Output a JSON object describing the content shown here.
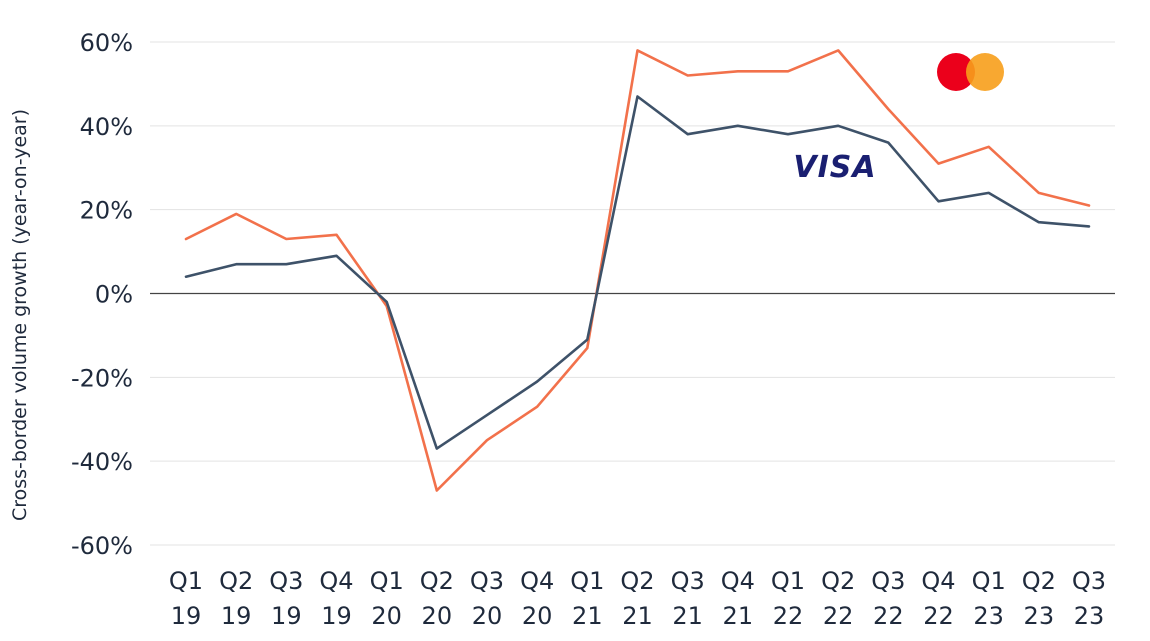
{
  "chart_data": {
    "type": "line",
    "ylabel": "Cross-border volume growth (year-on-year)",
    "ylim": [
      -60,
      60
    ],
    "yticks": [
      60,
      40,
      20,
      0,
      -20,
      -40,
      -60
    ],
    "ytick_labels": [
      "60%",
      "40%",
      "20%",
      "0%",
      "-20%",
      "-40%",
      "-60%"
    ],
    "categories": [
      [
        "Q1",
        "19"
      ],
      [
        "Q2",
        "19"
      ],
      [
        "Q3",
        "19"
      ],
      [
        "Q4",
        "19"
      ],
      [
        "Q1",
        "20"
      ],
      [
        "Q2",
        "20"
      ],
      [
        "Q3",
        "20"
      ],
      [
        "Q4",
        "20"
      ],
      [
        "Q1",
        "21"
      ],
      [
        "Q2",
        "21"
      ],
      [
        "Q3",
        "21"
      ],
      [
        "Q4",
        "21"
      ],
      [
        "Q1",
        "22"
      ],
      [
        "Q2",
        "22"
      ],
      [
        "Q3",
        "22"
      ],
      [
        "Q4",
        "22"
      ],
      [
        "Q1",
        "23"
      ],
      [
        "Q2",
        "23"
      ],
      [
        "Q3",
        "23"
      ]
    ],
    "series": [
      {
        "logo": "mastercard-logo",
        "color": "#f2714b",
        "values": [
          13,
          19,
          13,
          14,
          -3,
          -47,
          -35,
          -27,
          -13,
          58,
          52,
          53,
          53,
          58,
          44,
          31,
          35,
          24,
          21
        ]
      },
      {
        "logo": "visa-logo",
        "color": "#3e5269",
        "values": [
          4,
          7,
          7,
          9,
          -2,
          -37,
          -29,
          -21,
          -11,
          47,
          38,
          40,
          38,
          40,
          36,
          22,
          24,
          17,
          16
        ]
      }
    ],
    "grid": true,
    "legend": "logos-inline"
  },
  "logos": {
    "visa_text": "VISA",
    "visa_color": "#1a1f71",
    "mastercard_red": "#eb001b",
    "mastercard_orange": "#f79e1b"
  },
  "colors": {
    "grid": "#e3e3e3",
    "zero_line": "#444444",
    "text": "#1f2a3c"
  }
}
